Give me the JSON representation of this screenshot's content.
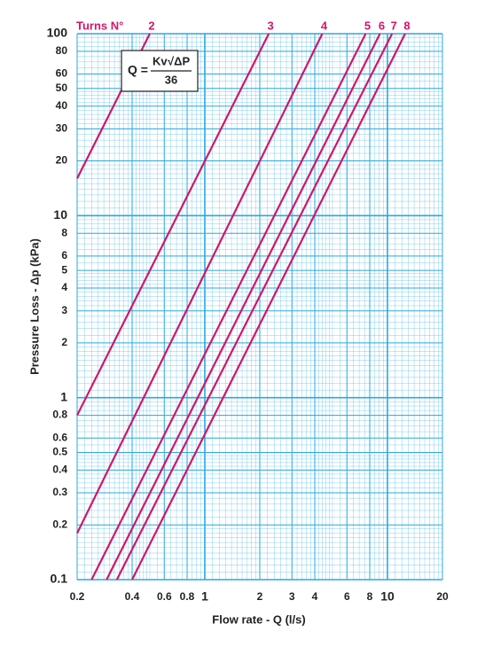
{
  "chart_data": {
    "type": "line",
    "legend_title": "Turns N°",
    "formula": {
      "lhs": "Q =",
      "kv": "Kv",
      "root": "√ΔP",
      "denominator": "36"
    },
    "xlabel": "Flow rate - Q (l/s)",
    "ylabel": "Pressure Loss - Δp (kPa)",
    "log_x": true,
    "log_y": true,
    "grid": true,
    "minor_grid": true,
    "grid_color": "#2aa9df",
    "xlim": [
      0.2,
      20
    ],
    "ylim": [
      0.1,
      100
    ],
    "xticks": [
      0.2,
      0.4,
      0.6,
      0.8,
      1,
      2,
      3,
      4,
      6,
      8,
      10,
      20
    ],
    "yticks": [
      0.1,
      0.2,
      0.3,
      0.4,
      0.5,
      0.6,
      0.8,
      1,
      2,
      3,
      4,
      5,
      6,
      8,
      10,
      20,
      30,
      40,
      50,
      60,
      80,
      100
    ],
    "series": [
      {
        "name": "2",
        "color": "#d1166b",
        "x": [
          0.2,
          0.5
        ],
        "values": [
          16,
          100
        ]
      },
      {
        "name": "3",
        "color": "#d1166b",
        "x": [
          0.2,
          2.24
        ],
        "values": [
          0.8,
          100
        ]
      },
      {
        "name": "4",
        "color": "#d1166b",
        "x": [
          0.2,
          4.4
        ],
        "values": [
          0.18,
          100
        ]
      },
      {
        "name": "5",
        "color": "#d1166b",
        "x": [
          0.24,
          7.6
        ],
        "values": [
          0.1,
          100
        ]
      },
      {
        "name": "6",
        "color": "#d1166b",
        "x": [
          0.29,
          9.1
        ],
        "values": [
          0.1,
          100
        ]
      },
      {
        "name": "7",
        "color": "#d1166b",
        "x": [
          0.33,
          10.6
        ],
        "values": [
          0.1,
          100
        ]
      },
      {
        "name": "8",
        "color": "#d1166b",
        "x": [
          0.4,
          12.5
        ],
        "values": [
          0.1,
          100
        ]
      }
    ]
  }
}
